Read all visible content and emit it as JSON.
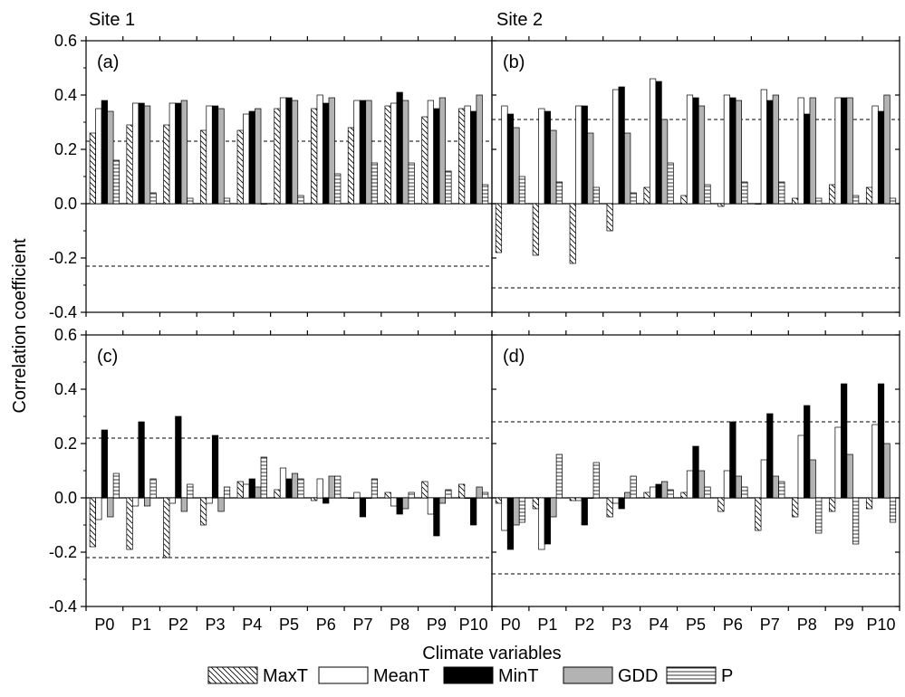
{
  "figure": {
    "site_labels": [
      "Site 1",
      "Site 2"
    ],
    "ylabel": "Correlation coefficient",
    "xlabel": "Climate variables"
  },
  "legend": [
    {
      "key": "maxt",
      "label": "MaxT",
      "pattern": "diag"
    },
    {
      "key": "meant",
      "label": "MeanT",
      "pattern": "white"
    },
    {
      "key": "mint",
      "label": "MinT",
      "pattern": "black"
    },
    {
      "key": "gdd",
      "label": "GDD",
      "pattern": "gray"
    },
    {
      "key": "p",
      "label": "P",
      "pattern": "hlines"
    }
  ],
  "colors": {
    "black": "#000000",
    "gray": "#b3b3b3",
    "white": "#ffffff"
  },
  "chart_data": [
    {
      "type": "bar",
      "panel": "(a)",
      "categories": [
        "P0",
        "P1",
        "P2",
        "P3",
        "P4",
        "P5",
        "P6",
        "P7",
        "P8",
        "P9",
        "P10"
      ],
      "ylim": [
        -0.4,
        0.6
      ],
      "yticks": [
        "-0.4",
        "-0.2",
        "0.0",
        "0.2",
        "0.4",
        "0.6"
      ],
      "threshold": 0.23,
      "series": [
        {
          "name": "MaxT",
          "values": [
            0.26,
            0.29,
            0.29,
            0.27,
            0.27,
            0.35,
            0.35,
            0.28,
            0.36,
            0.32,
            0.35
          ]
        },
        {
          "name": "MeanT",
          "values": [
            0.35,
            0.37,
            0.37,
            0.36,
            0.33,
            0.39,
            0.4,
            0.38,
            0.37,
            0.38,
            0.36
          ]
        },
        {
          "name": "MinT",
          "values": [
            0.38,
            0.37,
            0.37,
            0.36,
            0.34,
            0.39,
            0.37,
            0.38,
            0.41,
            0.35,
            0.34
          ]
        },
        {
          "name": "GDD",
          "values": [
            0.34,
            0.36,
            0.38,
            0.35,
            0.35,
            0.38,
            0.39,
            0.38,
            0.38,
            0.39,
            0.4
          ]
        },
        {
          "name": "P",
          "values": [
            0.16,
            0.04,
            0.02,
            0.02,
            0.0,
            0.03,
            0.11,
            0.15,
            0.15,
            0.12,
            0.07
          ]
        }
      ]
    },
    {
      "type": "bar",
      "panel": "(b)",
      "categories": [
        "P0",
        "P1",
        "P2",
        "P3",
        "P4",
        "P5",
        "P6",
        "P7",
        "P8",
        "P9",
        "P10"
      ],
      "ylim": [
        -0.4,
        0.6
      ],
      "yticks": [
        "-0.4",
        "-0.2",
        "0.0",
        "0.2",
        "0.4",
        "0.6"
      ],
      "threshold": 0.31,
      "series": [
        {
          "name": "MaxT",
          "values": [
            -0.18,
            -0.19,
            -0.22,
            -0.1,
            0.06,
            0.03,
            -0.01,
            0.0,
            0.02,
            0.07,
            0.06
          ]
        },
        {
          "name": "MeanT",
          "values": [
            0.36,
            0.35,
            0.36,
            0.42,
            0.46,
            0.4,
            0.4,
            0.42,
            0.39,
            0.39,
            0.36
          ]
        },
        {
          "name": "MinT",
          "values": [
            0.33,
            0.34,
            0.36,
            0.43,
            0.45,
            0.39,
            0.39,
            0.38,
            0.33,
            0.39,
            0.34
          ]
        },
        {
          "name": "GDD",
          "values": [
            0.28,
            0.27,
            0.26,
            0.26,
            0.31,
            0.36,
            0.38,
            0.4,
            0.39,
            0.39,
            0.4
          ]
        },
        {
          "name": "P",
          "values": [
            0.1,
            0.08,
            0.06,
            0.04,
            0.15,
            0.07,
            0.08,
            0.08,
            0.02,
            0.03,
            0.02
          ]
        }
      ]
    },
    {
      "type": "bar",
      "panel": "(c)",
      "categories": [
        "P0",
        "P1",
        "P2",
        "P3",
        "P4",
        "P5",
        "P6",
        "P7",
        "P8",
        "P9",
        "P10"
      ],
      "ylim": [
        -0.4,
        0.6
      ],
      "yticks": [
        "-0.4",
        "-0.2",
        "0.0",
        "0.2",
        "0.4",
        "0.6"
      ],
      "threshold": 0.22,
      "series": [
        {
          "name": "MaxT",
          "values": [
            -0.18,
            -0.19,
            -0.22,
            -0.1,
            0.06,
            0.03,
            -0.01,
            0.0,
            0.02,
            0.06,
            0.05
          ]
        },
        {
          "name": "MeanT",
          "values": [
            -0.08,
            -0.03,
            -0.02,
            -0.02,
            0.05,
            0.11,
            0.07,
            0.02,
            -0.03,
            -0.06,
            0.0
          ]
        },
        {
          "name": "MinT",
          "values": [
            0.25,
            0.28,
            0.3,
            0.23,
            0.07,
            0.07,
            -0.02,
            -0.07,
            -0.06,
            -0.14,
            -0.1
          ]
        },
        {
          "name": "GDD",
          "values": [
            -0.07,
            -0.03,
            -0.05,
            -0.05,
            0.04,
            0.09,
            0.08,
            0.0,
            -0.04,
            -0.02,
            0.04
          ]
        },
        {
          "name": "P",
          "values": [
            0.09,
            0.07,
            0.05,
            0.04,
            0.15,
            0.07,
            0.08,
            0.07,
            0.02,
            0.03,
            0.02
          ]
        }
      ]
    },
    {
      "type": "bar",
      "panel": "(d)",
      "categories": [
        "P0",
        "P1",
        "P2",
        "P3",
        "P4",
        "P5",
        "P6",
        "P7",
        "P8",
        "P9",
        "P10"
      ],
      "ylim": [
        -0.4,
        0.6
      ],
      "yticks": [
        "-0.4",
        "-0.2",
        "0.0",
        "0.2",
        "0.4",
        "0.6"
      ],
      "threshold": 0.28,
      "series": [
        {
          "name": "MaxT",
          "values": [
            -0.02,
            -0.04,
            -0.01,
            -0.07,
            0.02,
            0.02,
            -0.05,
            -0.12,
            -0.07,
            -0.05,
            -0.04
          ]
        },
        {
          "name": "MeanT",
          "values": [
            -0.12,
            -0.19,
            -0.01,
            -0.02,
            0.04,
            0.1,
            0.1,
            0.14,
            0.23,
            0.26,
            0.27
          ]
        },
        {
          "name": "MinT",
          "values": [
            -0.19,
            -0.17,
            -0.1,
            -0.04,
            0.05,
            0.19,
            0.28,
            0.31,
            0.34,
            0.42,
            0.42
          ]
        },
        {
          "name": "GDD",
          "values": [
            -0.1,
            -0.07,
            0.0,
            0.02,
            0.06,
            0.1,
            0.08,
            0.08,
            0.14,
            0.16,
            0.2
          ]
        },
        {
          "name": "P",
          "values": [
            -0.09,
            0.16,
            0.13,
            0.08,
            0.03,
            0.04,
            0.04,
            0.06,
            -0.13,
            -0.17,
            -0.09
          ]
        }
      ]
    }
  ]
}
